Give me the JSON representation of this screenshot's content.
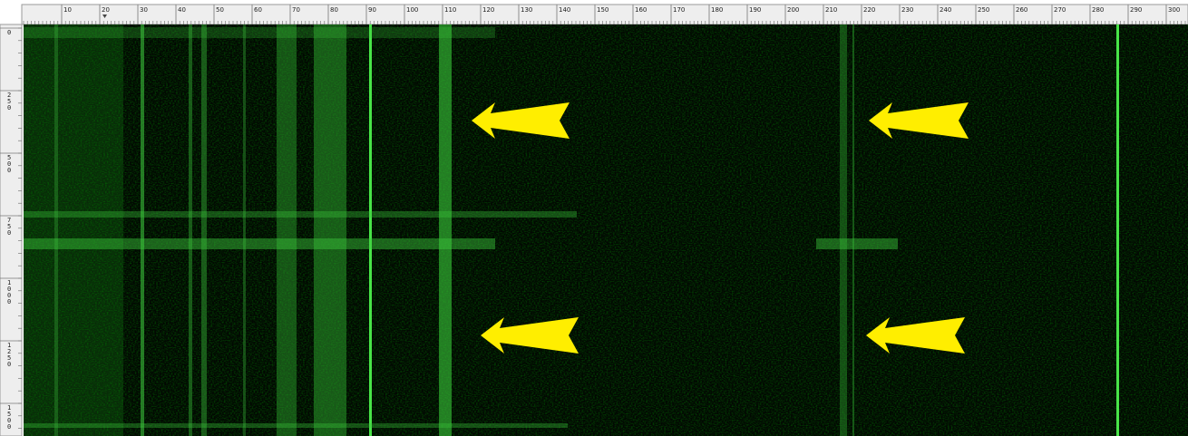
{
  "top_ruler": {
    "labels": [
      10,
      20,
      30,
      40,
      50,
      60,
      70,
      80,
      90,
      100,
      110,
      120,
      130,
      140,
      150,
      160,
      170,
      180,
      190,
      200,
      210,
      220,
      230,
      240,
      250,
      260,
      270,
      280,
      290,
      300
    ]
  },
  "left_ruler": {
    "labels": [
      0,
      250,
      500,
      750,
      1000,
      1250,
      1500
    ]
  }
}
